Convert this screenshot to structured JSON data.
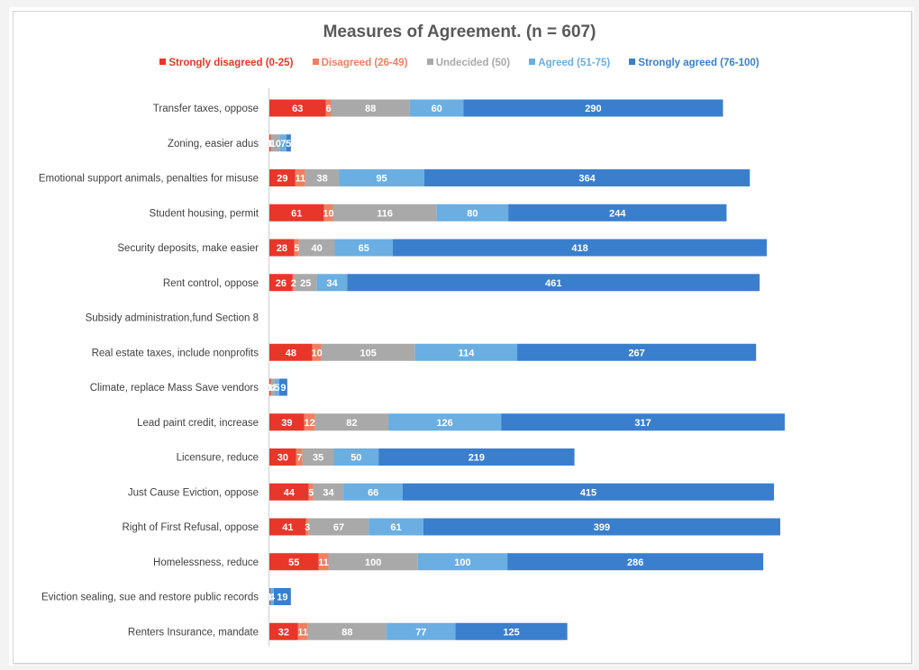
{
  "chart_data": {
    "type": "bar",
    "orientation": "horizontal",
    "stacked": true,
    "title": "Measures of Agreement. (n = 607)",
    "xlabel": "",
    "ylabel": "",
    "xlim": [
      0,
      580
    ],
    "grid": false,
    "legend_position": "top",
    "categories": [
      "Transfer taxes, oppose",
      "Zoning, easier adus",
      "Emotional support animals, penalties for misuse",
      "Student housing, permit",
      "Security deposits, make easier",
      "Rent control, oppose",
      "Subsidy administration,fund Section 8",
      "Real estate taxes, include nonprofits",
      "Climate, replace Mass Save vendors",
      "Lead paint credit, increase",
      "Licensure, reduce",
      "Just Cause Eviction, oppose",
      "Right of First Refusal, oppose",
      "Homelessness, reduce",
      "Eviction sealing, sue and restore public records",
      "Renters Insurance, mandate"
    ],
    "series": [
      {
        "name": "Strongly disagreed (0-25)",
        "color": "#e8362a",
        "values": [
          63,
          1,
          29,
          61,
          28,
          26,
          0,
          48,
          1,
          39,
          30,
          44,
          41,
          55,
          1,
          32
        ]
      },
      {
        "name": "Disagreed (26-49)",
        "color": "#f07f62",
        "values": [
          6,
          1,
          11,
          10,
          5,
          2,
          0,
          10,
          1,
          12,
          7,
          5,
          3,
          11,
          0,
          11
        ]
      },
      {
        "name": "Undecided (50)",
        "color": "#a9a9a9",
        "values": [
          88,
          10,
          38,
          116,
          40,
          25,
          0,
          105,
          4,
          82,
          35,
          34,
          67,
          100,
          0,
          88
        ]
      },
      {
        "name": "Agreed (51-75)",
        "color": "#6aaee2",
        "values": [
          60,
          7,
          95,
          80,
          65,
          34,
          0,
          114,
          5,
          126,
          50,
          66,
          61,
          100,
          4,
          77
        ]
      },
      {
        "name": "Strongly agreed (76-100)",
        "color": "#3a7fcd",
        "values": [
          290,
          5,
          364,
          244,
          418,
          461,
          0,
          267,
          9,
          317,
          219,
          415,
          399,
          286,
          19,
          125
        ]
      }
    ]
  },
  "legend_text_colors": [
    "#e8362a",
    "#f07f62",
    "#a9a9a9",
    "#6aaee2",
    "#3a7fcd"
  ]
}
